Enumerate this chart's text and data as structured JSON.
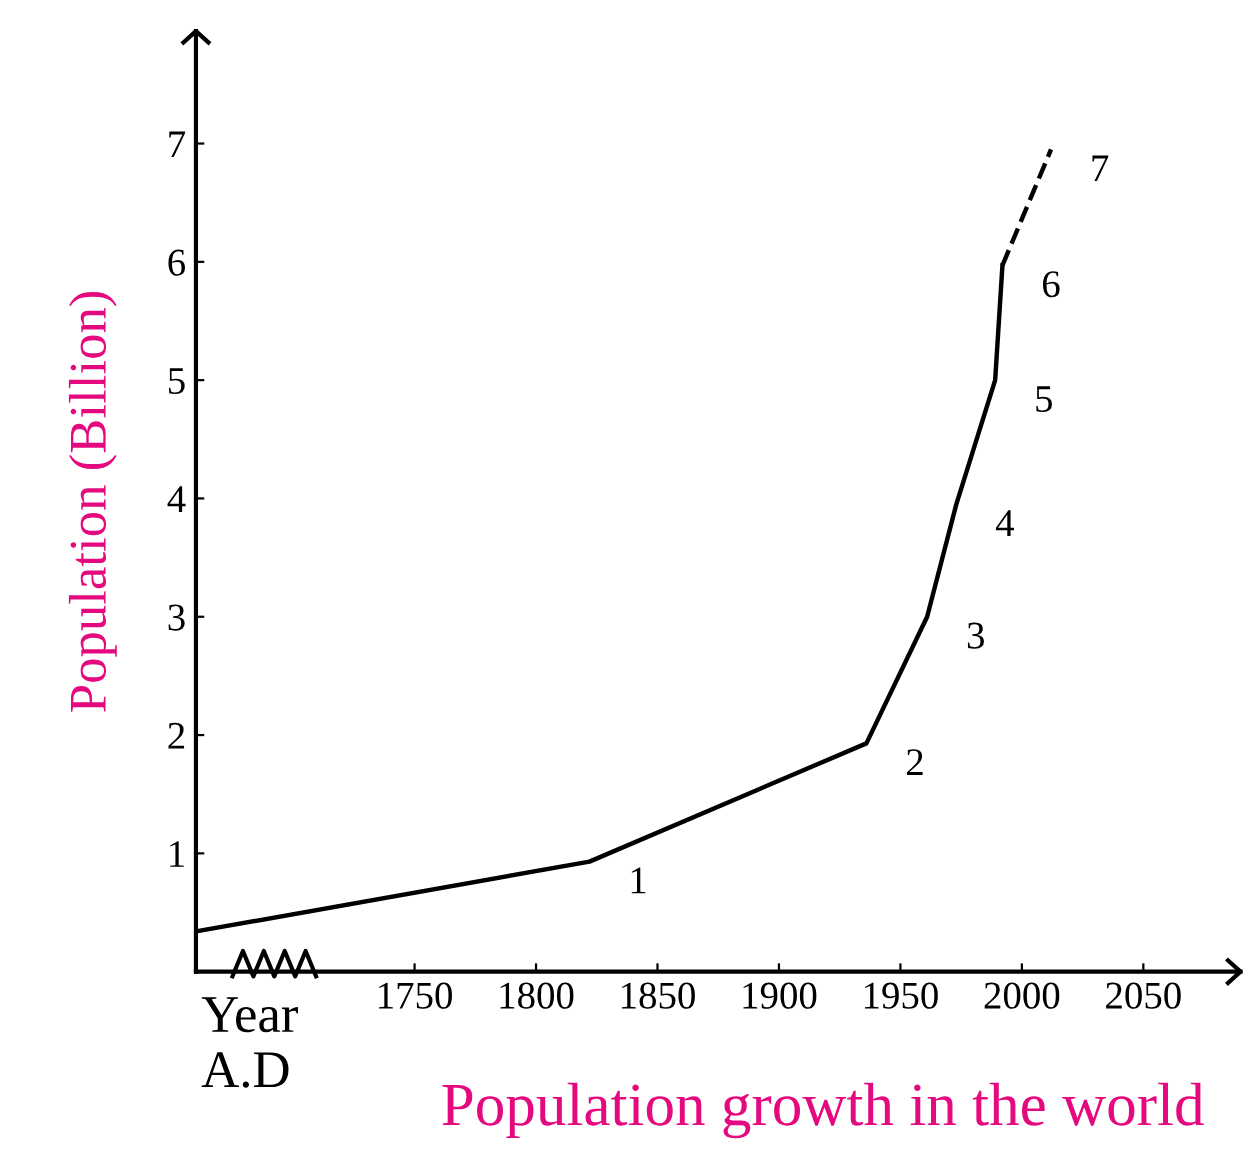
{
  "chart_data": {
    "type": "line",
    "title": "Population growth in the world",
    "xlabel": "Year\nA.D",
    "ylabel": "Population (Billion)",
    "series": [
      {
        "color": "#000000",
        "line_style": "solid",
        "x": [
          1660,
          1822,
          1936,
          1961,
          1973,
          1989,
          1992
        ],
        "values": [
          0.34,
          0.93,
          1.93,
          3.0,
          3.95,
          5.0,
          5.97
        ]
      },
      {
        "color": "#000000",
        "line_style": "dashed",
        "x": [
          1992,
          2012
        ],
        "values": [
          5.97,
          6.95
        ]
      }
    ],
    "xlim": [
      1660,
      2090
    ],
    "xticks": [
      1750,
      1800,
      1850,
      1900,
      1950,
      2000,
      2050
    ],
    "ylim": [
      0,
      7.95
    ],
    "yticks": [
      1,
      2,
      3,
      4,
      5,
      6,
      7
    ],
    "grid": false,
    "legend": false,
    "annotations": [
      {
        "text": "1",
        "x": 1822,
        "y": 0.93
      },
      {
        "text": "2",
        "x": 1936,
        "y": 1.93
      },
      {
        "text": "3",
        "x": 1961,
        "y": 3.0
      },
      {
        "text": "4",
        "x": 1973,
        "y": 3.95
      },
      {
        "text": "5",
        "x": 1989,
        "y": 5.0
      },
      {
        "text": "6",
        "x": 1992,
        "y": 5.97
      },
      {
        "text": "7",
        "x": 2012,
        "y": 6.95
      }
    ]
  }
}
